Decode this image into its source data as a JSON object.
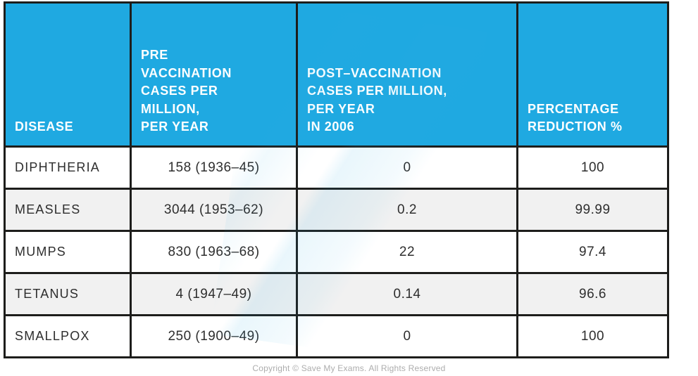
{
  "table": {
    "columns": [
      {
        "label": "DISEASE"
      },
      {
        "label": "PRE\nVACCINATION\nCASES PER\nMILLION,\nPER YEAR"
      },
      {
        "label": "POST–VACCINATION\nCASES PER MILLION,\nPER YEAR\nIN 2006"
      },
      {
        "label": "PERCENTAGE\nREDUCTION %"
      }
    ],
    "rows": [
      {
        "disease": "DIPHTHERIA",
        "pre": "158 (1936–45)",
        "post": "0",
        "reduction": "100"
      },
      {
        "disease": "MEASLES",
        "pre": "3044 (1953–62)",
        "post": "0.2",
        "reduction": "99.99"
      },
      {
        "disease": "MUMPS",
        "pre": "830 (1963–68)",
        "post": "22",
        "reduction": "97.4"
      },
      {
        "disease": "TETANUS",
        "pre": "4 (1947–49)",
        "post": "0.14",
        "reduction": "96.6"
      },
      {
        "disease": "SMALLPOX",
        "pre": "250 (1900–49)",
        "post": "0",
        "reduction": "100"
      }
    ]
  },
  "chart_data": {
    "type": "table",
    "title": "Disease cases per million per year, pre vs post vaccination",
    "columns": [
      "Disease",
      "Pre vaccination cases per million, per year",
      "Post-vaccination cases per million, per year in 2006",
      "Percentage reduction %"
    ],
    "rows": [
      [
        "Diphtheria",
        "158 (1936–45)",
        0,
        100
      ],
      [
        "Measles",
        "3044 (1953–62)",
        0.2,
        99.99
      ],
      [
        "Mumps",
        "830 (1963–68)",
        22,
        97.4
      ],
      [
        "Tetanus",
        "4 (1947–49)",
        0.14,
        96.6
      ],
      [
        "Smallpox",
        "250 (1900–49)",
        0,
        100
      ]
    ]
  },
  "footer": {
    "copyright": "Copyright © Save My Exams. All Rights Reserved"
  },
  "colors": {
    "header_bg": "#1fa9e1",
    "grid_border": "#1d1d1b",
    "row_alt_bg": "#f1f1f1",
    "header_text": "#ffffff",
    "body_text": "#2e2e2e",
    "footer_text": "#adadad"
  }
}
